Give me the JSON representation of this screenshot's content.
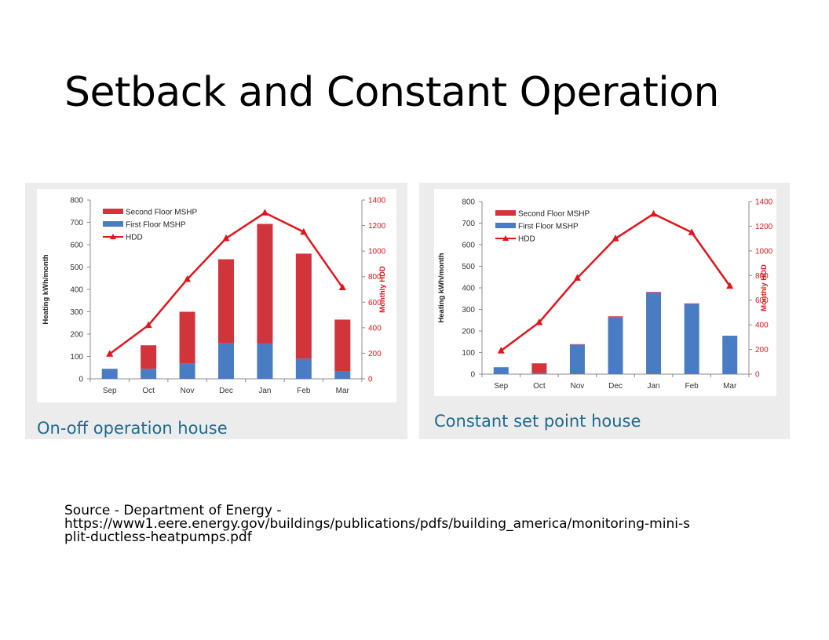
{
  "slide": {
    "title": "Setback and Constant Operation",
    "source_lines": [
      "Source - Department of Energy -",
      "https://www1.eere.energy.gov/buildings/publications/pdfs/building_america/monitoring-mini-s",
      "plit-ductless-heatpumps.pdf"
    ]
  },
  "colors": {
    "second_floor": "#d2343c",
    "first_floor": "#4a7cc3",
    "hdd": "#e4141b",
    "caption": "#1f6a8d"
  },
  "chart_data": [
    {
      "type": "bar",
      "caption": "On-off operation house",
      "stacked": true,
      "categories": [
        "Sep",
        "Oct",
        "Nov",
        "Dec",
        "Jan",
        "Feb",
        "Mar"
      ],
      "ylabel": "Heating kWh/month",
      "ylim": [
        0,
        800
      ],
      "yticks": [
        0,
        100,
        200,
        300,
        400,
        500,
        600,
        700,
        800
      ],
      "y2label": "Monthly HDD",
      "y2lim": [
        0,
        1400
      ],
      "y2ticks": [
        0,
        200,
        400,
        600,
        800,
        1000,
        1200,
        1400
      ],
      "legend_position": "top-left",
      "grid": false,
      "series": [
        {
          "name": "Second Floor MSHP",
          "type": "bar",
          "axis": "left",
          "values": [
            0,
            105,
            230,
            375,
            535,
            470,
            230
          ]
        },
        {
          "name": "First Floor MSHP",
          "type": "bar",
          "axis": "left",
          "values": [
            45,
            45,
            70,
            160,
            158,
            90,
            35
          ]
        },
        {
          "name": "HDD",
          "type": "line",
          "axis": "right",
          "values": [
            195,
            420,
            780,
            1100,
            1300,
            1150,
            715
          ]
        }
      ]
    },
    {
      "type": "bar",
      "caption": "Constant set point house",
      "stacked": true,
      "categories": [
        "Sep",
        "Oct",
        "Nov",
        "Dec",
        "Jan",
        "Feb",
        "Mar"
      ],
      "ylabel": "Heating kWh/month",
      "ylim": [
        0,
        800
      ],
      "yticks": [
        0,
        100,
        200,
        300,
        400,
        500,
        600,
        700,
        800
      ],
      "y2label": "Monthly HDD",
      "y2lim": [
        0,
        1400
      ],
      "y2ticks": [
        0,
        200,
        400,
        600,
        800,
        1000,
        1200,
        1400
      ],
      "legend_position": "top-left",
      "grid": false,
      "series": [
        {
          "name": "Second Floor MSHP",
          "type": "bar",
          "axis": "left",
          "values": [
            0,
            45,
            2,
            3,
            3,
            3,
            0
          ]
        },
        {
          "name": "First Floor MSHP",
          "type": "bar",
          "axis": "left",
          "values": [
            32,
            5,
            137,
            265,
            378,
            325,
            178
          ]
        },
        {
          "name": "HDD",
          "type": "line",
          "axis": "right",
          "values": [
            190,
            420,
            780,
            1100,
            1300,
            1150,
            715
          ]
        }
      ]
    }
  ]
}
